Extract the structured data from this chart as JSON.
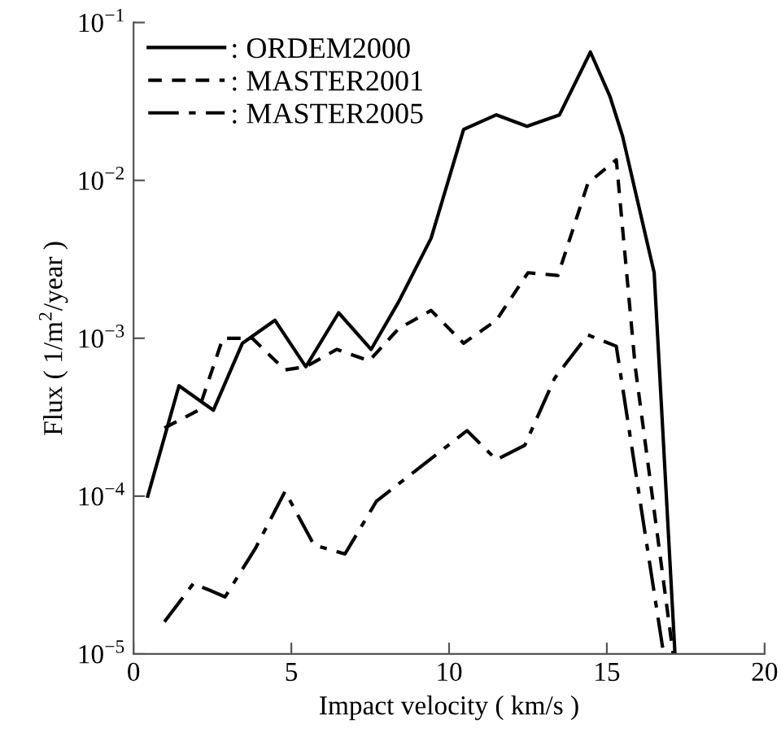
{
  "chart_data": {
    "type": "line",
    "xlabel": "Impact velocity ( km/s )",
    "ylabel": "Flux ( 1/m$^{2}$/year )",
    "log": "y",
    "xlim": [
      0,
      20
    ],
    "ylim": [
      1e-05,
      0.1
    ],
    "xticks": [
      0,
      5,
      10,
      15,
      20
    ],
    "yticks": [
      {
        "value": 1e-05,
        "label": "10$^{−5}$"
      },
      {
        "value": 0.0001,
        "label": "10$^{−4}$"
      },
      {
        "value": 0.001,
        "label": "10$^{−3}$"
      },
      {
        "value": 0.01,
        "label": "10$^{−2}$"
      },
      {
        "value": 0.1,
        "label": "10$^{−1}$"
      }
    ],
    "grid": false,
    "legend": "top left",
    "marker": "none",
    "series": [
      {
        "name": ": ORDEM2000",
        "color": "#000000",
        "line_style": "solid",
        "x": [
          0.45,
          1.44,
          2.53,
          3.45,
          4.48,
          5.46,
          6.5,
          7.53,
          8.4,
          9.43,
          10.46,
          11.5,
          12.47,
          13.5,
          14.48,
          15.1,
          15.5,
          16.5,
          17.16
        ],
        "values": [
          0.0001,
          0.0005,
          0.00035,
          0.00093,
          0.0013,
          0.00066,
          0.00145,
          0.00085,
          0.0017,
          0.0043,
          0.021,
          0.026,
          0.022,
          0.026,
          0.065,
          0.034,
          0.019,
          0.0026,
          1e-05
        ]
      },
      {
        "name": ": MASTER2001",
        "color": "#000000",
        "line_style": "dashed",
        "x": [
          0.98,
          2.06,
          2.83,
          3.76,
          4.8,
          5.46,
          6.44,
          7.47,
          8.4,
          9.43,
          10.46,
          11.5,
          12.5,
          13.45,
          14.4,
          15.3,
          15.9,
          17.1
        ],
        "values": [
          0.00027,
          0.00035,
          0.001,
          0.001,
          0.00063,
          0.00066,
          0.00085,
          0.00072,
          0.00115,
          0.0015,
          0.00093,
          0.0013,
          0.0026,
          0.0025,
          0.0096,
          0.0135,
          0.00066,
          1e-05
        ]
      },
      {
        "name": ": MASTER2005",
        "color": "#000000",
        "line_style": "dashdot",
        "x": [
          0.98,
          1.9,
          2.9,
          3.87,
          4.8,
          5.72,
          6.7,
          7.7,
          10.57,
          11.5,
          12.4,
          13.35,
          14.4,
          15.3,
          16.8
        ],
        "values": [
          1.6e-05,
          2.8e-05,
          2.3e-05,
          4.7e-05,
          0.000107,
          4.9e-05,
          4.3e-05,
          9.3e-05,
          0.00026,
          0.00017,
          0.00021,
          0.00056,
          0.00105,
          0.00089,
          1e-05
        ]
      }
    ]
  }
}
